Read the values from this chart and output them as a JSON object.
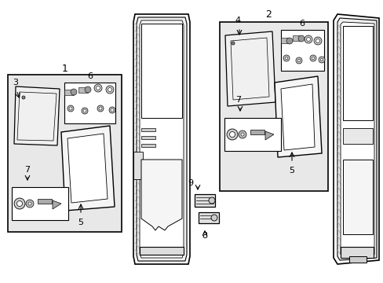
{
  "bg_color": "#ffffff",
  "line_color": "#000000",
  "gray_fill": "#e8e8e8",
  "white_fill": "#ffffff",
  "figsize": [
    4.89,
    3.6
  ],
  "dpi": 100
}
